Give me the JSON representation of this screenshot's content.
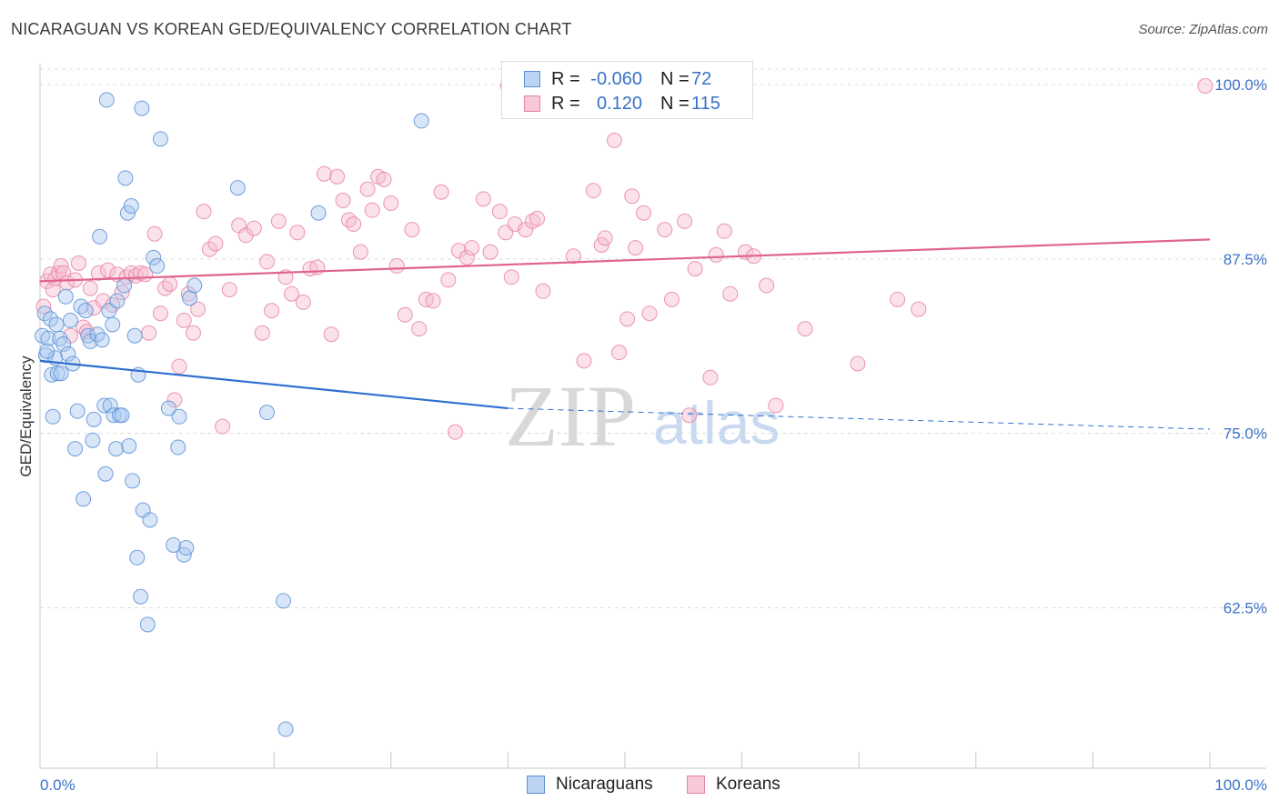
{
  "title": "NICARAGUAN VS KOREAN GED/EQUIVALENCY CORRELATION CHART",
  "source": "Source: ZipAtlas.com",
  "watermark": {
    "part1": "ZIP",
    "part2": "atlas"
  },
  "legend": {
    "rows": [
      {
        "r_label": "R =",
        "r_value": "-0.060",
        "n_label": "N =",
        "n_value": "72"
      },
      {
        "r_label": "R =",
        "r_value": "0.120",
        "n_label": "N =",
        "n_value": "115"
      }
    ]
  },
  "bottom_legend": {
    "nicaraguans": "Nicaraguans",
    "koreans": "Koreans"
  },
  "colors": {
    "nicaraguan_fill": "#a9c8f0",
    "nicaraguan_stroke": "#5b8fd6",
    "nicaraguan_line": "#2e6fcf",
    "korean_fill": "#f6bcd0",
    "korean_stroke": "#e684a6",
    "korean_line": "#e0648f",
    "tick_label": "#3a72c8",
    "grid": "#dcdcdc"
  },
  "chart_data": {
    "type": "scatter",
    "title": "NICARAGUAN VS KOREAN GED/EQUIVALENCY CORRELATION CHART",
    "xlabel": "",
    "ylabel": "GED/Equivalency",
    "xlim": [
      0,
      100
    ],
    "ylim": [
      51,
      101.5
    ],
    "x_tick_labels": [
      "0.0%",
      "100.0%"
    ],
    "y_ticks": [
      62.5,
      75.0,
      87.5,
      100.0
    ],
    "y_tick_labels": [
      "62.5%",
      "75.0%",
      "87.5%",
      "100.0%"
    ],
    "grid": true,
    "series": [
      {
        "name": "Nicaraguans",
        "trend": {
          "x0": 0,
          "y0": 80.2,
          "x1": 40,
          "y1": 76.8,
          "dashed_to_x": 100,
          "dashed_to_y": 75.3
        },
        "points": [
          [
            0.2,
            82.0
          ],
          [
            0.4,
            83.6
          ],
          [
            0.5,
            80.6
          ],
          [
            0.7,
            81.8
          ],
          [
            0.9,
            83.2
          ],
          [
            1.0,
            79.2
          ],
          [
            1.1,
            76.2
          ],
          [
            1.3,
            80.4
          ],
          [
            1.4,
            82.8
          ],
          [
            1.5,
            79.3
          ],
          [
            1.7,
            81.8
          ],
          [
            1.8,
            79.3
          ],
          [
            2.0,
            81.4
          ],
          [
            2.2,
            84.8
          ],
          [
            2.4,
            80.7
          ],
          [
            2.6,
            83.1
          ],
          [
            2.8,
            80.0
          ],
          [
            3.0,
            73.9
          ],
          [
            3.2,
            76.6
          ],
          [
            3.5,
            84.1
          ],
          [
            3.7,
            70.3
          ],
          [
            3.9,
            83.8
          ],
          [
            4.1,
            82.0
          ],
          [
            4.3,
            81.6
          ],
          [
            4.5,
            74.5
          ],
          [
            4.6,
            76.0
          ],
          [
            4.9,
            82.1
          ],
          [
            5.1,
            89.1
          ],
          [
            5.3,
            81.7
          ],
          [
            5.5,
            77.0
          ],
          [
            5.6,
            72.1
          ],
          [
            5.7,
            98.9
          ],
          [
            5.9,
            83.8
          ],
          [
            6.0,
            77.0
          ],
          [
            6.2,
            82.8
          ],
          [
            6.3,
            76.3
          ],
          [
            6.5,
            73.9
          ],
          [
            6.6,
            84.5
          ],
          [
            6.8,
            76.3
          ],
          [
            7.0,
            76.3
          ],
          [
            7.2,
            85.6
          ],
          [
            7.3,
            93.3
          ],
          [
            7.5,
            90.8
          ],
          [
            7.6,
            74.1
          ],
          [
            7.8,
            91.3
          ],
          [
            7.9,
            71.6
          ],
          [
            8.1,
            82.0
          ],
          [
            8.3,
            66.1
          ],
          [
            8.4,
            79.2
          ],
          [
            8.6,
            63.3
          ],
          [
            8.7,
            98.3
          ],
          [
            8.8,
            69.5
          ],
          [
            9.2,
            61.3
          ],
          [
            9.4,
            68.8
          ],
          [
            9.7,
            87.6
          ],
          [
            10.0,
            87.0
          ],
          [
            10.3,
            96.1
          ],
          [
            11.0,
            76.8
          ],
          [
            11.4,
            67.0
          ],
          [
            11.8,
            74.0
          ],
          [
            11.9,
            76.2
          ],
          [
            12.3,
            66.3
          ],
          [
            12.5,
            66.8
          ],
          [
            12.8,
            84.7
          ],
          [
            13.2,
            85.6
          ],
          [
            16.9,
            92.6
          ],
          [
            19.4,
            76.5
          ],
          [
            20.8,
            63.0
          ],
          [
            21.0,
            53.8
          ],
          [
            23.8,
            90.8
          ],
          [
            32.6,
            97.4
          ],
          [
            0.6,
            80.9
          ]
        ]
      },
      {
        "name": "Koreans",
        "trend": {
          "x0": 0,
          "y0": 85.9,
          "x1": 100,
          "y1": 88.9
        },
        "points": [
          [
            0.3,
            84.1
          ],
          [
            0.6,
            85.9
          ],
          [
            0.9,
            86.4
          ],
          [
            1.1,
            85.3
          ],
          [
            1.3,
            86.1
          ],
          [
            1.6,
            86.5
          ],
          [
            1.8,
            87.0
          ],
          [
            2.0,
            86.5
          ],
          [
            2.3,
            85.8
          ],
          [
            2.6,
            82.0
          ],
          [
            3.0,
            86.0
          ],
          [
            3.3,
            87.2
          ],
          [
            3.7,
            82.6
          ],
          [
            4.0,
            82.3
          ],
          [
            4.3,
            85.4
          ],
          [
            4.6,
            84.0
          ],
          [
            5.0,
            86.5
          ],
          [
            5.4,
            84.5
          ],
          [
            5.8,
            86.7
          ],
          [
            6.2,
            84.2
          ],
          [
            6.6,
            86.4
          ],
          [
            7.0,
            85.1
          ],
          [
            7.4,
            86.2
          ],
          [
            7.8,
            86.5
          ],
          [
            8.2,
            86.3
          ],
          [
            8.6,
            86.5
          ],
          [
            9.0,
            86.4
          ],
          [
            9.3,
            82.2
          ],
          [
            9.8,
            89.3
          ],
          [
            10.3,
            83.6
          ],
          [
            10.7,
            85.4
          ],
          [
            11.1,
            85.7
          ],
          [
            11.5,
            77.4
          ],
          [
            11.9,
            79.8
          ],
          [
            12.3,
            83.1
          ],
          [
            12.7,
            85.0
          ],
          [
            13.1,
            82.2
          ],
          [
            13.5,
            83.9
          ],
          [
            14.0,
            90.9
          ],
          [
            14.5,
            88.2
          ],
          [
            15.0,
            88.6
          ],
          [
            15.6,
            75.5
          ],
          [
            16.2,
            85.3
          ],
          [
            17.0,
            89.9
          ],
          [
            17.6,
            89.2
          ],
          [
            18.3,
            89.7
          ],
          [
            19.0,
            82.2
          ],
          [
            19.4,
            87.3
          ],
          [
            19.8,
            83.8
          ],
          [
            20.4,
            90.2
          ],
          [
            21.0,
            86.2
          ],
          [
            21.5,
            85.0
          ],
          [
            22.0,
            89.4
          ],
          [
            22.5,
            84.4
          ],
          [
            23.1,
            86.8
          ],
          [
            23.7,
            86.9
          ],
          [
            24.3,
            93.6
          ],
          [
            24.9,
            82.1
          ],
          [
            25.4,
            93.4
          ],
          [
            25.9,
            91.7
          ],
          [
            26.4,
            90.3
          ],
          [
            26.8,
            90.0
          ],
          [
            27.4,
            88.0
          ],
          [
            28.0,
            92.5
          ],
          [
            28.4,
            91.0
          ],
          [
            28.9,
            93.4
          ],
          [
            29.4,
            93.2
          ],
          [
            30.0,
            91.5
          ],
          [
            30.5,
            87.0
          ],
          [
            31.2,
            83.5
          ],
          [
            31.8,
            89.6
          ],
          [
            32.4,
            82.5
          ],
          [
            33.0,
            84.6
          ],
          [
            33.6,
            84.5
          ],
          [
            34.3,
            92.3
          ],
          [
            34.9,
            86.0
          ],
          [
            35.5,
            75.1
          ],
          [
            35.8,
            88.1
          ],
          [
            36.5,
            87.6
          ],
          [
            36.9,
            88.3
          ],
          [
            37.9,
            91.8
          ],
          [
            38.5,
            88.0
          ],
          [
            39.3,
            90.9
          ],
          [
            39.8,
            89.4
          ],
          [
            40.3,
            86.2
          ],
          [
            40.6,
            90.0
          ],
          [
            41.5,
            89.6
          ],
          [
            42.1,
            90.2
          ],
          [
            42.5,
            90.4
          ],
          [
            43.0,
            85.2
          ],
          [
            40.0,
            99.9
          ],
          [
            45.6,
            87.7
          ],
          [
            46.5,
            80.2
          ],
          [
            47.3,
            92.4
          ],
          [
            48.0,
            88.5
          ],
          [
            48.3,
            89.0
          ],
          [
            49.1,
            96.0
          ],
          [
            49.5,
            80.8
          ],
          [
            50.2,
            83.2
          ],
          [
            50.6,
            92.0
          ],
          [
            50.9,
            88.3
          ],
          [
            51.6,
            90.8
          ],
          [
            52.1,
            83.6
          ],
          [
            53.4,
            89.6
          ],
          [
            54.0,
            84.6
          ],
          [
            55.1,
            90.2
          ],
          [
            55.5,
            76.3
          ],
          [
            56.0,
            86.8
          ],
          [
            57.3,
            79.0
          ],
          [
            57.8,
            87.8
          ],
          [
            58.5,
            89.5
          ],
          [
            59.0,
            85.0
          ],
          [
            60.3,
            88.0
          ],
          [
            61.0,
            87.7
          ],
          [
            62.1,
            85.6
          ],
          [
            62.9,
            77.0
          ],
          [
            65.4,
            82.5
          ],
          [
            69.9,
            80.0
          ],
          [
            73.3,
            84.6
          ],
          [
            75.1,
            83.9
          ],
          [
            99.6,
            99.9
          ]
        ]
      }
    ]
  }
}
